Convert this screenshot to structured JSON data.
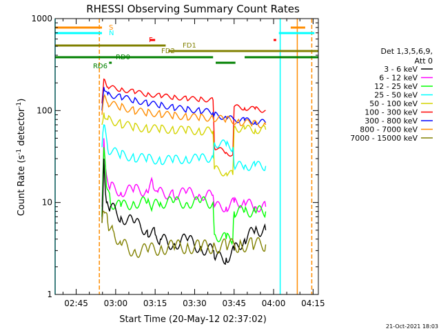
{
  "chart_data": {
    "type": "line",
    "title": "RHESSI Observing Summary Count Rates",
    "xlabel": "Start Time (20-May-12 02:37:02)",
    "ylabel_main": "Count Rate (s",
    "ylabel_sup1": "-1",
    "ylabel_mid": " detector",
    "ylabel_sup2": "-1",
    "ylabel_end": ")",
    "yscale": "log",
    "xlim_min": [
      0,
      100
    ],
    "ylim": [
      1,
      1000
    ],
    "x_ticks": [
      {
        "label": "02:45",
        "min": 8
      },
      {
        "label": "03:00",
        "min": 23
      },
      {
        "label": "03:15",
        "min": 38
      },
      {
        "label": "03:30",
        "min": 53
      },
      {
        "label": "03:45",
        "min": 68
      },
      {
        "label": "04:00",
        "min": 83
      },
      {
        "label": "04:15",
        "min": 98
      }
    ],
    "y_ticks": [
      {
        "label": "1",
        "v": 1
      },
      {
        "label": "10",
        "v": 10
      },
      {
        "label": "100",
        "v": 100
      },
      {
        "label": "1000",
        "v": 1000
      }
    ],
    "legend": {
      "header1": "Det 1,3,5,6,9,",
      "header2": "Att 0",
      "entries": [
        {
          "label": "3 - 6 keV",
          "color": "#000000"
        },
        {
          "label": "6 - 12 keV",
          "color": "#ff00ff"
        },
        {
          "label": "12 - 25 keV",
          "color": "#00ff00"
        },
        {
          "label": "25 - 50 keV",
          "color": "#00ffff"
        },
        {
          "label": "50 - 100 keV",
          "color": "#d4d400"
        },
        {
          "label": "100 - 300 keV",
          "color": "#ff0000"
        },
        {
          "label": "300 - 800 keV",
          "color": "#0000ff"
        },
        {
          "label": "800 - 7000 keV",
          "color": "#ff8c00"
        },
        {
          "label": "7000 - 15000 keV",
          "color": "#808000"
        }
      ]
    },
    "flags": [
      {
        "label": "S",
        "color": "#ff8c00",
        "segments": [
          [
            0,
            17.8
          ],
          [
            89.5,
            95
          ]
        ],
        "level": 0
      },
      {
        "label": "N",
        "color": "#00ffff",
        "segments": [
          [
            0,
            17.8
          ],
          [
            85,
            98.5
          ]
        ],
        "level": 1
      },
      {
        "label": "F",
        "color": "#ff0000",
        "segments": [
          [
            36,
            38
          ],
          [
            83,
            84
          ]
        ],
        "level": 2
      },
      {
        "label": "FD1",
        "color": "#808000",
        "segments": [
          [
            0,
            42
          ]
        ],
        "level": 3
      },
      {
        "label": "FD2",
        "color": "#808000",
        "segments": [
          [
            43,
            100
          ]
        ],
        "level": 4
      },
      {
        "label": "RD0",
        "color": "#008000",
        "segments": [
          [
            0,
            60
          ],
          [
            72,
            100
          ]
        ],
        "level": 5
      },
      {
        "label": "RD6",
        "color": "#008000",
        "segments": [
          [
            61,
            68.5
          ]
        ],
        "level": 6
      },
      {
        "label": "RD6",
        "color": "#008000",
        "segments": [
          [
            20.5,
            21.5
          ]
        ],
        "level": 7
      }
    ],
    "vlines": [
      {
        "min": 0,
        "color": "#00ffff",
        "dash": false
      },
      {
        "min": 16.8,
        "color": "#ff8c00",
        "dash": true
      },
      {
        "min": 85.5,
        "color": "#00ffff",
        "dash": false
      },
      {
        "min": 92,
        "color": "#ff8c00",
        "dash": false
      },
      {
        "min": 97.5,
        "color": "#ff8c00",
        "dash": true
      }
    ],
    "series": [
      {
        "color": "#ff0000",
        "points": [
          [
            17.8,
            120
          ],
          [
            18.5,
            220
          ],
          [
            20,
            180
          ],
          [
            25,
            170
          ],
          [
            30,
            160
          ],
          [
            35,
            150
          ],
          [
            40,
            145
          ],
          [
            45,
            140
          ],
          [
            50,
            135
          ],
          [
            55,
            133
          ],
          [
            60,
            130
          ],
          [
            60.5,
            40
          ],
          [
            65,
            35
          ],
          [
            67.5,
            33
          ],
          [
            68,
            110
          ],
          [
            72,
            107
          ],
          [
            76,
            104
          ],
          [
            80,
            100
          ]
        ]
      },
      {
        "color": "#0000ff",
        "points": [
          [
            17.8,
            100
          ],
          [
            18.5,
            180
          ],
          [
            20,
            150
          ],
          [
            25,
            140
          ],
          [
            30,
            130
          ],
          [
            35,
            120
          ],
          [
            40,
            115
          ],
          [
            45,
            108
          ],
          [
            50,
            103
          ],
          [
            55,
            100
          ],
          [
            60,
            96
          ],
          [
            60.5,
            90
          ],
          [
            65,
            84
          ],
          [
            68,
            80
          ],
          [
            72,
            78
          ],
          [
            76,
            76
          ],
          [
            80,
            74
          ]
        ]
      },
      {
        "color": "#ff8c00",
        "points": [
          [
            17.8,
            90
          ],
          [
            18.5,
            140
          ],
          [
            20,
            120
          ],
          [
            25,
            110
          ],
          [
            30,
            100
          ],
          [
            35,
            95
          ],
          [
            40,
            92
          ],
          [
            45,
            88
          ],
          [
            50,
            86
          ],
          [
            55,
            84
          ],
          [
            60,
            83
          ],
          [
            65,
            80
          ],
          [
            70,
            75
          ],
          [
            75,
            72
          ],
          [
            80,
            70
          ]
        ]
      },
      {
        "color": "#d4d400",
        "points": [
          [
            17.8,
            70
          ],
          [
            18.5,
            95
          ],
          [
            20,
            80
          ],
          [
            25,
            72
          ],
          [
            30,
            66
          ],
          [
            35,
            64
          ],
          [
            40,
            63
          ],
          [
            45,
            62
          ],
          [
            50,
            61
          ],
          [
            55,
            60
          ],
          [
            60,
            60
          ],
          [
            60.5,
            23
          ],
          [
            65,
            21
          ],
          [
            67.5,
            20
          ],
          [
            68,
            65
          ],
          [
            72,
            63
          ],
          [
            76,
            62
          ],
          [
            80,
            62
          ]
        ]
      },
      {
        "color": "#00ffff",
        "points": [
          [
            17.8,
            40
          ],
          [
            18.5,
            70
          ],
          [
            20,
            38
          ],
          [
            25,
            33
          ],
          [
            30,
            31
          ],
          [
            35,
            30
          ],
          [
            40,
            29
          ],
          [
            45,
            29
          ],
          [
            50,
            30
          ],
          [
            55,
            30
          ],
          [
            60,
            31
          ],
          [
            60.5,
            45
          ],
          [
            65,
            42
          ],
          [
            67.5,
            40
          ],
          [
            68,
            25
          ],
          [
            72,
            25
          ],
          [
            76,
            25
          ],
          [
            80,
            25
          ]
        ]
      },
      {
        "color": "#ff00ff",
        "points": [
          [
            17.8,
            9
          ],
          [
            18.5,
            50
          ],
          [
            19.5,
            20
          ],
          [
            21,
            15
          ],
          [
            25,
            13
          ],
          [
            30,
            14
          ],
          [
            35,
            13
          ],
          [
            37,
            17
          ],
          [
            39,
            13
          ],
          [
            45,
            12
          ],
          [
            50,
            13
          ],
          [
            55,
            12
          ],
          [
            60,
            12
          ],
          [
            60.5,
            9
          ],
          [
            65,
            9
          ],
          [
            68,
            10
          ],
          [
            72,
            10
          ],
          [
            76,
            9
          ],
          [
            80,
            9
          ]
        ]
      },
      {
        "color": "#00ff00",
        "points": [
          [
            17.8,
            7
          ],
          [
            18.5,
            40
          ],
          [
            19.5,
            15
          ],
          [
            21,
            10
          ],
          [
            25,
            9
          ],
          [
            30,
            10
          ],
          [
            35,
            10
          ],
          [
            37,
            9
          ],
          [
            40,
            10
          ],
          [
            45,
            10
          ],
          [
            50,
            10
          ],
          [
            55,
            10
          ],
          [
            60,
            10
          ],
          [
            60.5,
            4.5
          ],
          [
            65,
            4
          ],
          [
            67.5,
            4
          ],
          [
            68,
            8
          ],
          [
            72,
            8
          ],
          [
            76,
            8
          ],
          [
            80,
            8
          ]
        ]
      },
      {
        "color": "#000000",
        "points": [
          [
            17.8,
            6
          ],
          [
            18.5,
            30
          ],
          [
            19.5,
            10
          ],
          [
            21,
            9
          ],
          [
            25,
            7
          ],
          [
            30,
            6
          ],
          [
            35,
            5
          ],
          [
            38,
            4.5
          ],
          [
            40,
            4
          ],
          [
            45,
            3.5
          ],
          [
            50,
            4
          ],
          [
            55,
            3.2
          ],
          [
            60,
            3
          ],
          [
            60.5,
            2.5
          ],
          [
            65,
            2.5
          ],
          [
            68,
            3
          ],
          [
            72,
            4
          ],
          [
            76,
            5
          ],
          [
            80,
            5
          ]
        ]
      },
      {
        "color": "#808000",
        "points": [
          [
            17.8,
            6
          ],
          [
            18.5,
            8
          ],
          [
            20,
            6
          ],
          [
            22,
            5
          ],
          [
            25,
            3.5
          ],
          [
            30,
            3
          ],
          [
            35,
            3
          ],
          [
            40,
            3.2
          ],
          [
            45,
            3.3
          ],
          [
            50,
            3.3
          ],
          [
            55,
            3.3
          ],
          [
            60,
            3.3
          ],
          [
            65,
            3.4
          ],
          [
            70,
            3.4
          ],
          [
            75,
            3.5
          ],
          [
            80,
            3.5
          ]
        ]
      }
    ],
    "drop_verticals": [
      {
        "min": 60.5,
        "series_colors": [
          "#ff0000",
          "#d4d400",
          "#00ffff",
          "#00ff00"
        ]
      },
      {
        "min": 68,
        "series_colors": [
          "#ff0000",
          "#d4d400",
          "#00ffff",
          "#00ff00"
        ]
      }
    ],
    "end_minute": 80,
    "footer": "21-Oct-2021 18:03"
  }
}
